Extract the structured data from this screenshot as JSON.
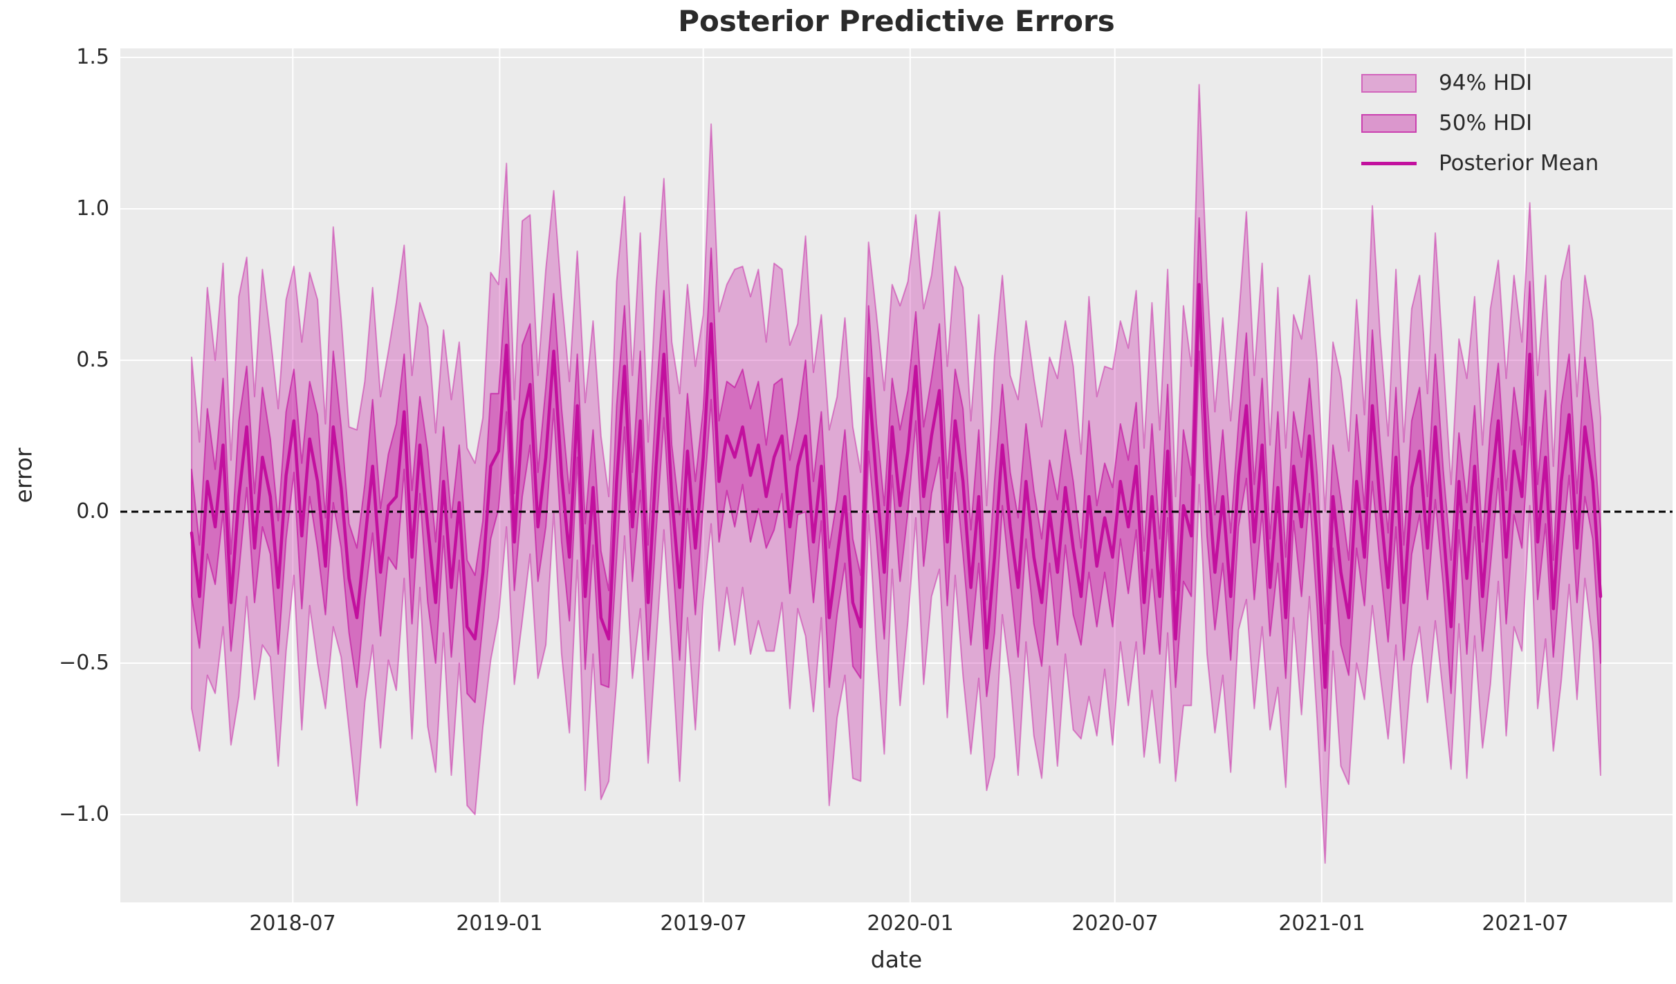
{
  "figure": {
    "title": "Posterior Predictive Errors",
    "xlabel": "date",
    "ylabel": "error"
  },
  "colors": {
    "figure_background": "#ffffff",
    "plot_background": "#ebebeb",
    "grid": "#ffffff",
    "text": "#2a2a2a",
    "mean_line": "#c2109e",
    "hdi94_fill": "rgba(194,16,158,0.30)",
    "hdi94_edge": "rgba(194,16,158,0.45)",
    "hdi50_fill": "rgba(194,16,158,0.38)",
    "hdi50_edge": "rgba(194,16,158,0.65)",
    "zero_line": "#000000"
  },
  "legend": {
    "items": [
      {
        "label": "94% HDI",
        "type": "patch"
      },
      {
        "label": "50% HDI",
        "type": "patch"
      },
      {
        "label": "Posterior Mean",
        "type": "line"
      }
    ]
  },
  "chart_data": {
    "type": "line",
    "title": "Posterior Predictive Errors",
    "xlabel": "date",
    "ylabel": "error",
    "grid": true,
    "legend_position": "upper right",
    "x_start_date": "2018-04-02",
    "x_step_days": 7,
    "n_points": 180,
    "ylim": [
      -1.29,
      1.53
    ],
    "zero_reference_line": 0.0,
    "x_ticks": [
      {
        "label": "2018-07",
        "week": 12.857
      },
      {
        "label": "2019-01",
        "week": 39.143
      },
      {
        "label": "2019-07",
        "week": 65.0
      },
      {
        "label": "2020-01",
        "week": 91.286
      },
      {
        "label": "2020-07",
        "week": 117.286
      },
      {
        "label": "2021-01",
        "week": 143.571
      },
      {
        "label": "2021-07",
        "week": 169.429
      }
    ],
    "y_ticks": [
      {
        "label": "1.5",
        "value": 1.5
      },
      {
        "label": "1.0",
        "value": 1.0
      },
      {
        "label": "0.5",
        "value": 0.5
      },
      {
        "label": "0.0",
        "value": 0.0
      },
      {
        "label": "−0.5",
        "value": -0.5
      },
      {
        "label": "−1.0",
        "value": -1.0
      }
    ],
    "series": [
      {
        "name": "Posterior Mean",
        "key": "mean"
      },
      {
        "name": "50% HDI",
        "key": "hdi50_half",
        "band_around": "mean"
      },
      {
        "name": "94% HDI",
        "key": "hdi94_half",
        "band_around": "mean"
      }
    ],
    "mean": [
      -0.07,
      -0.28,
      0.1,
      -0.05,
      0.22,
      -0.3,
      0.05,
      0.28,
      -0.12,
      0.18,
      0.05,
      -0.25,
      0.12,
      0.3,
      -0.08,
      0.24,
      0.1,
      -0.18,
      0.28,
      0.08,
      -0.22,
      -0.35,
      -0.1,
      0.15,
      -0.2,
      0.02,
      0.05,
      0.33,
      -0.15,
      0.22,
      -0.05,
      -0.3,
      0.1,
      -0.25,
      0.03,
      -0.38,
      -0.42,
      -0.2,
      0.15,
      0.2,
      0.55,
      -0.1,
      0.3,
      0.42,
      -0.05,
      0.18,
      0.53,
      0.12,
      -0.15,
      0.35,
      -0.28,
      0.08,
      -0.35,
      -0.42,
      0.1,
      0.48,
      -0.05,
      0.3,
      -0.3,
      0.15,
      0.52,
      0.05,
      -0.25,
      0.2,
      -0.12,
      0.18,
      0.62,
      0.1,
      0.25,
      0.18,
      0.28,
      0.12,
      0.22,
      0.05,
      0.18,
      0.25,
      -0.05,
      0.15,
      0.25,
      -0.1,
      0.15,
      -0.35,
      -0.15,
      0.05,
      -0.3,
      -0.38,
      0.44,
      0.1,
      -0.2,
      0.28,
      0.02,
      0.2,
      0.48,
      0.05,
      0.25,
      0.4,
      -0.1,
      0.3,
      0.1,
      -0.25,
      0.05,
      -0.45,
      -0.15,
      0.22,
      -0.05,
      -0.25,
      0.1,
      -0.15,
      -0.3,
      0.0,
      -0.2,
      0.08,
      -0.12,
      -0.28,
      0.05,
      -0.18,
      -0.02,
      -0.15,
      0.1,
      -0.05,
      0.15,
      -0.3,
      0.05,
      -0.28,
      0.2,
      -0.42,
      0.02,
      -0.08,
      0.75,
      0.15,
      -0.2,
      0.05,
      -0.28,
      0.12,
      0.35,
      -0.1,
      0.22,
      -0.25,
      0.08,
      -0.35,
      0.15,
      -0.05,
      0.25,
      -0.1,
      -0.58,
      0.05,
      -0.2,
      -0.35,
      0.1,
      -0.15,
      0.35,
      0.02,
      -0.25,
      0.18,
      -0.3,
      0.08,
      0.2,
      -0.12,
      0.28,
      -0.05,
      -0.38,
      0.1,
      -0.22,
      0.15,
      -0.28,
      0.05,
      0.3,
      -0.15,
      0.2,
      0.05,
      0.52,
      -0.1,
      0.18,
      -0.32,
      0.1,
      0.32,
      -0.12,
      0.28,
      0.1,
      -0.28
    ],
    "hdi50_half": [
      0.21,
      0.17,
      0.24,
      0.19,
      0.22,
      0.16,
      0.25,
      0.2,
      0.18,
      0.23,
      0.19,
      0.22,
      0.21,
      0.17,
      0.24,
      0.19,
      0.22,
      0.16,
      0.25,
      0.2,
      0.18,
      0.23,
      0.19,
      0.22,
      0.21,
      0.17,
      0.24,
      0.19,
      0.22,
      0.16,
      0.25,
      0.2,
      0.18,
      0.23,
      0.19,
      0.22,
      0.21,
      0.17,
      0.24,
      0.19,
      0.22,
      0.16,
      0.25,
      0.2,
      0.18,
      0.23,
      0.19,
      0.22,
      0.21,
      0.17,
      0.24,
      0.19,
      0.22,
      0.16,
      0.25,
      0.2,
      0.18,
      0.23,
      0.19,
      0.22,
      0.21,
      0.17,
      0.24,
      0.19,
      0.22,
      0.16,
      0.25,
      0.2,
      0.18,
      0.23,
      0.19,
      0.22,
      0.21,
      0.17,
      0.24,
      0.19,
      0.22,
      0.16,
      0.25,
      0.2,
      0.18,
      0.23,
      0.19,
      0.22,
      0.21,
      0.17,
      0.24,
      0.19,
      0.22,
      0.16,
      0.25,
      0.2,
      0.18,
      0.23,
      0.19,
      0.22,
      0.21,
      0.17,
      0.24,
      0.19,
      0.22,
      0.16,
      0.25,
      0.2,
      0.18,
      0.23,
      0.19,
      0.22,
      0.21,
      0.17,
      0.24,
      0.19,
      0.22,
      0.16,
      0.25,
      0.2,
      0.18,
      0.23,
      0.19,
      0.22,
      0.21,
      0.17,
      0.24,
      0.19,
      0.22,
      0.16,
      0.25,
      0.2,
      0.22,
      0.23,
      0.19,
      0.22,
      0.21,
      0.17,
      0.24,
      0.19,
      0.22,
      0.16,
      0.25,
      0.2,
      0.18,
      0.23,
      0.19,
      0.22,
      0.21,
      0.17,
      0.24,
      0.19,
      0.22,
      0.16,
      0.25,
      0.2,
      0.18,
      0.23,
      0.19,
      0.22,
      0.21,
      0.17,
      0.24,
      0.19,
      0.22,
      0.16,
      0.25,
      0.2,
      0.18,
      0.23,
      0.19,
      0.22,
      0.21,
      0.17,
      0.24,
      0.19,
      0.22,
      0.16,
      0.25,
      0.2,
      0.18,
      0.23,
      0.19,
      0.22
    ],
    "hdi94_half": [
      0.58,
      0.51,
      0.64,
      0.55,
      0.6,
      0.47,
      0.66,
      0.56,
      0.5,
      0.62,
      0.53,
      0.59,
      0.58,
      0.51,
      0.64,
      0.55,
      0.6,
      0.47,
      0.66,
      0.56,
      0.5,
      0.62,
      0.53,
      0.59,
      0.58,
      0.51,
      0.64,
      0.55,
      0.6,
      0.47,
      0.66,
      0.56,
      0.5,
      0.62,
      0.53,
      0.59,
      0.58,
      0.51,
      0.64,
      0.55,
      0.6,
      0.47,
      0.66,
      0.56,
      0.5,
      0.62,
      0.53,
      0.59,
      0.58,
      0.51,
      0.64,
      0.55,
      0.6,
      0.47,
      0.66,
      0.56,
      0.5,
      0.62,
      0.53,
      0.59,
      0.58,
      0.51,
      0.64,
      0.55,
      0.6,
      0.47,
      0.66,
      0.56,
      0.5,
      0.62,
      0.53,
      0.59,
      0.58,
      0.51,
      0.64,
      0.55,
      0.6,
      0.47,
      0.66,
      0.56,
      0.5,
      0.62,
      0.53,
      0.59,
      0.58,
      0.51,
      0.45,
      0.55,
      0.6,
      0.47,
      0.66,
      0.56,
      0.5,
      0.62,
      0.53,
      0.59,
      0.58,
      0.51,
      0.64,
      0.55,
      0.6,
      0.47,
      0.66,
      0.56,
      0.5,
      0.62,
      0.53,
      0.59,
      0.58,
      0.51,
      0.64,
      0.55,
      0.6,
      0.47,
      0.66,
      0.56,
      0.5,
      0.62,
      0.53,
      0.59,
      0.58,
      0.51,
      0.64,
      0.55,
      0.6,
      0.47,
      0.66,
      0.56,
      0.66,
      0.62,
      0.53,
      0.59,
      0.58,
      0.51,
      0.64,
      0.55,
      0.6,
      0.47,
      0.66,
      0.56,
      0.5,
      0.62,
      0.53,
      0.59,
      0.58,
      0.51,
      0.64,
      0.55,
      0.6,
      0.47,
      0.66,
      0.56,
      0.5,
      0.62,
      0.53,
      0.59,
      0.58,
      0.51,
      0.64,
      0.55,
      0.47,
      0.47,
      0.66,
      0.56,
      0.5,
      0.62,
      0.53,
      0.59,
      0.58,
      0.51,
      0.5,
      0.55,
      0.6,
      0.47,
      0.66,
      0.56,
      0.5,
      0.5,
      0.53,
      0.59
    ]
  }
}
